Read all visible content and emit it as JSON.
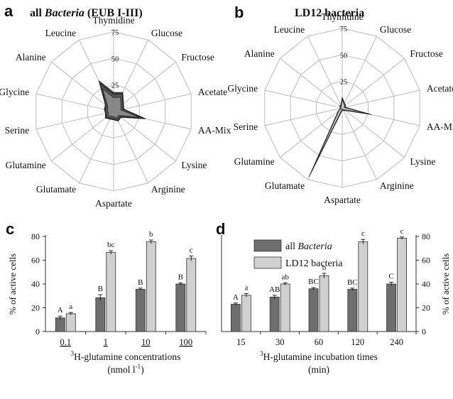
{
  "chart_data": [
    {
      "panel": "a",
      "type": "radar",
      "title": "all Bacteria (EUB I-III)",
      "title_prefix": "all",
      "title_italic": "Bacteria",
      "title_suffix": "(EUB I-III)",
      "axes": [
        "Thymidine",
        "Glucose",
        "Fructose",
        "Acetate",
        "AA-Mix",
        "Lysine",
        "Arginine",
        "Aspartate",
        "Glutamate",
        "Glutamine",
        "Serine",
        "Glycine",
        "Alanine",
        "Leucine"
      ],
      "rlim": [
        0,
        75
      ],
      "rticks": [
        25,
        50,
        75
      ],
      "series": [
        {
          "values": [
            18,
            20,
            12,
            10,
            31,
            9,
            10,
            8,
            8,
            10,
            8,
            9,
            10,
            32
          ],
          "color": "#333333"
        },
        {
          "values": [
            16,
            18,
            11,
            9,
            29,
            8,
            9,
            7,
            7,
            9,
            7,
            8,
            9,
            29
          ],
          "color": "#5a5a5a"
        },
        {
          "values": [
            13,
            15,
            9,
            7,
            25,
            6,
            7,
            5,
            5,
            7,
            5,
            6,
            7,
            24
          ],
          "color": "#8a8a8a"
        }
      ]
    },
    {
      "panel": "b",
      "type": "radar",
      "title": "LD12 bacteria",
      "axes": [
        "Thymidine",
        "Glucose",
        "Fructose",
        "Acetate",
        "AA-Mix",
        "Lysine",
        "Arginine",
        "Aspartate",
        "Glutamate",
        "Glutamine",
        "Serine",
        "Glycine",
        "Alanine",
        "Leucine"
      ],
      "rlim": [
        0,
        75
      ],
      "rticks": [
        25,
        50,
        75
      ],
      "series": [
        {
          "values": [
            10,
            5,
            4,
            3,
            28,
            4,
            3,
            2,
            72,
            5,
            2,
            2,
            3,
            3
          ],
          "color": "#333333"
        },
        {
          "values": [
            9,
            4,
            3,
            2,
            26,
            3,
            2,
            2,
            69,
            4,
            2,
            2,
            2,
            2
          ],
          "color": "#777777"
        },
        {
          "values": [
            8,
            4,
            3,
            2,
            24,
            3,
            2,
            1,
            65,
            4,
            1,
            1,
            2,
            2
          ],
          "color": "#c8c8c8"
        }
      ]
    },
    {
      "panel": "c",
      "type": "bar",
      "categories": [
        "0.1",
        "1",
        "10",
        "100"
      ],
      "xlabel_prefix": "3",
      "xlabel_main": "H-glutamine concentrations",
      "xlabel_line2_prefix": "(nmol l",
      "xlabel_line2_sup": "-1",
      "xlabel_line2_suffix": ")",
      "ylabel": "% of active cells",
      "ylim": [
        0,
        80
      ],
      "yticks": [
        0,
        20,
        40,
        60,
        80
      ],
      "series": [
        {
          "values": [
            11.5,
            28.5,
            35.5,
            40
          ],
          "errors": [
            1.5,
            2.5,
            1,
            1
          ],
          "letters": [
            "A",
            "B",
            "B",
            "B"
          ],
          "color": "#6e6e6e"
        },
        {
          "values": [
            15,
            66.5,
            75.5,
            61.5
          ],
          "errors": [
            1,
            1.5,
            1.5,
            2
          ],
          "letters": [
            "a",
            "bc",
            "b",
            "c"
          ],
          "color": "#d0d0d0"
        }
      ]
    },
    {
      "panel": "d",
      "type": "bar",
      "categories": [
        "15",
        "30",
        "60",
        "120",
        "240"
      ],
      "xlabel_prefix": "3",
      "xlabel_main": "H-glutamine incubation times",
      "xlabel_line2": "(min)",
      "ylabel": "% of active cells",
      "ylim": [
        0,
        80
      ],
      "yticks": [
        0,
        20,
        40,
        60,
        80
      ],
      "legend": {
        "placement": "top-left",
        "series_italic": [
          true,
          false
        ]
      },
      "series": [
        {
          "name": "all Bacteria",
          "name_prefix": "all",
          "name_italic": "Bacteria",
          "values": [
            23,
            29,
            36,
            35.5,
            40
          ],
          "errors": [
            1,
            1.5,
            1,
            1,
            1.5
          ],
          "letters": [
            "A",
            "AB",
            "BC",
            "BC",
            "C"
          ],
          "color": "#6e6e6e"
        },
        {
          "name": "LD12 bacteria",
          "values": [
            30.5,
            40,
            47,
            75.5,
            78.5
          ],
          "errors": [
            1.5,
            1,
            2,
            2,
            1
          ],
          "letters": [
            "a",
            "ab",
            "b",
            "c",
            "c"
          ],
          "color": "#d0d0d0"
        }
      ]
    }
  ]
}
